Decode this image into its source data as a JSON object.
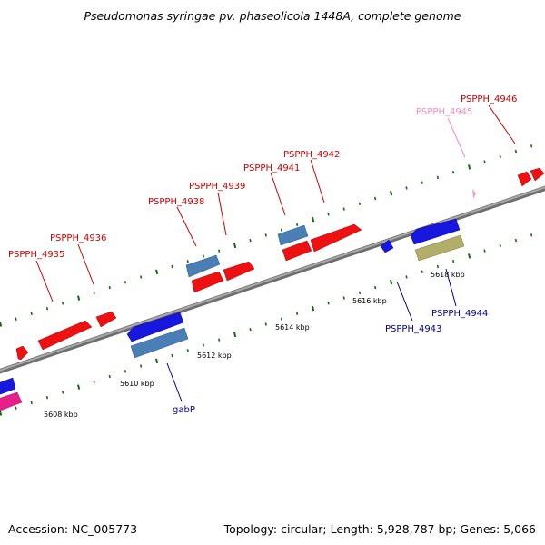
{
  "title": "Pseudomonas syringae pv. phaseolicola 1448A, complete genome",
  "footer": {
    "accession": "Accession: NC_005773",
    "summary": "Topology: circular; Length: 5,928,787 bp; Genes: 5,066"
  },
  "colors": {
    "backbone": "#8a8a8a",
    "tick": "#0f6e0f",
    "red_gene": "#ee1111",
    "blue_gene": "#1717dd",
    "steel_gene": "#4a7fb5",
    "khaki_gene": "#b3ad6a",
    "pink_gene": "#e8208a",
    "light_pink_gene": "#f0a0c8",
    "label_red": "#cc0000",
    "label_blue": "#00008b",
    "label_pink": "#f08cc0"
  },
  "scale_labels": [
    "5608 kbp",
    "5610 kbp",
    "5612 kbp",
    "5614 kbp",
    "5616 kbp",
    "5618 kbp"
  ],
  "gene_labels": {
    "top": [
      "PSPPH_4935",
      "PSPPH_4936",
      "PSPPH_4938",
      "PSPPH_4939",
      "PSPPH_4941",
      "PSPPH_4942",
      "PSPPH_4945",
      "PSPPH_4946"
    ],
    "bottom": [
      "gabP",
      "PSPPH_4943",
      "PSPPH_4944"
    ]
  }
}
